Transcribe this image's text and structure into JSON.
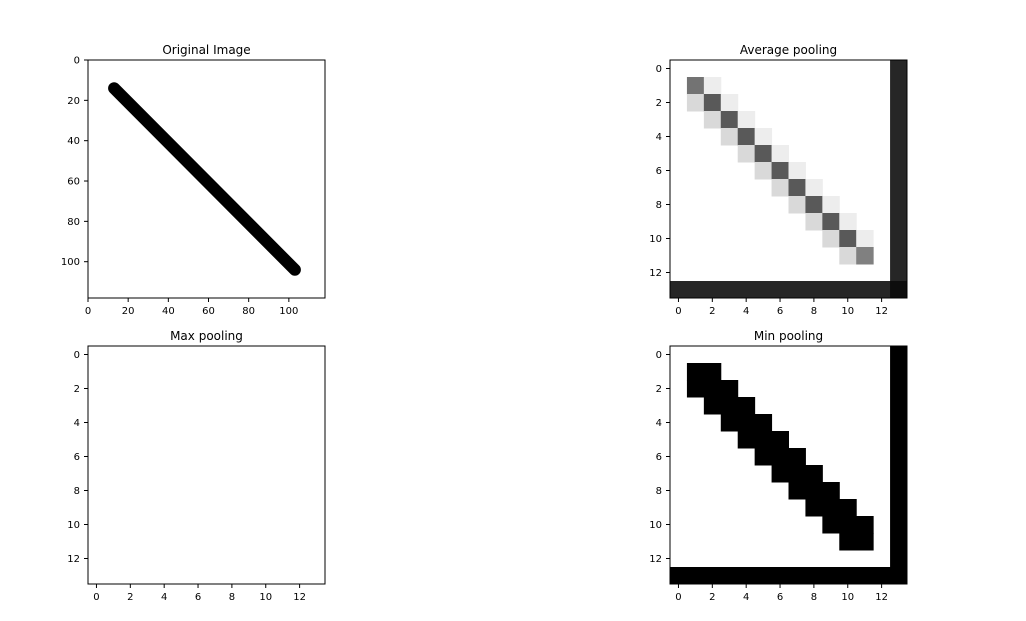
{
  "figure": {
    "background": "#ffffff"
  },
  "chart_data": [
    {
      "type": "heatmap",
      "title": "Original Image",
      "xlabel": "",
      "ylabel": "",
      "xlim": [
        0,
        118
      ],
      "ylim": [
        118,
        0
      ],
      "xticks": [
        0,
        20,
        40,
        60,
        80,
        100
      ],
      "yticks": [
        0,
        20,
        40,
        60,
        80,
        100
      ],
      "colormap": "gray",
      "content": {
        "kind": "line-stroke",
        "from": [
          13,
          14
        ],
        "to": [
          103,
          104
        ],
        "color": "#000000",
        "thickness_data_units": 6
      }
    },
    {
      "type": "heatmap",
      "title": "Average pooling",
      "xlabel": "",
      "ylabel": "",
      "xlim": [
        -0.5,
        13.5
      ],
      "ylim": [
        13.5,
        -0.5
      ],
      "xticks": [
        0,
        2,
        4,
        6,
        8,
        10,
        12
      ],
      "yticks": [
        0,
        2,
        4,
        6,
        8,
        10,
        12
      ],
      "colormap": "gray",
      "cells": [
        [
          1,
          1,
          0.45
        ],
        [
          1,
          2,
          0.93
        ],
        [
          2,
          1,
          0.85
        ],
        [
          2,
          2,
          0.35
        ],
        [
          2,
          3,
          0.93
        ],
        [
          3,
          2,
          0.85
        ],
        [
          3,
          3,
          0.35
        ],
        [
          3,
          4,
          0.93
        ],
        [
          4,
          3,
          0.85
        ],
        [
          4,
          4,
          0.35
        ],
        [
          4,
          5,
          0.93
        ],
        [
          5,
          4,
          0.85
        ],
        [
          5,
          5,
          0.35
        ],
        [
          5,
          6,
          0.93
        ],
        [
          6,
          5,
          0.85
        ],
        [
          6,
          6,
          0.35
        ],
        [
          6,
          7,
          0.93
        ],
        [
          7,
          6,
          0.85
        ],
        [
          7,
          7,
          0.35
        ],
        [
          7,
          8,
          0.93
        ],
        [
          8,
          7,
          0.85
        ],
        [
          8,
          8,
          0.35
        ],
        [
          8,
          9,
          0.93
        ],
        [
          9,
          8,
          0.85
        ],
        [
          9,
          9,
          0.35
        ],
        [
          9,
          10,
          0.93
        ],
        [
          10,
          9,
          0.85
        ],
        [
          10,
          10,
          0.35
        ],
        [
          10,
          11,
          0.93
        ],
        [
          11,
          10,
          0.85
        ],
        [
          11,
          11,
          0.5
        ]
      ],
      "last_row_value": 0.15,
      "last_col_value": 0.15,
      "corner_value": 0.05
    },
    {
      "type": "heatmap",
      "title": "Max pooling",
      "xlabel": "",
      "ylabel": "",
      "xlim": [
        -0.5,
        13.5
      ],
      "ylim": [
        13.5,
        -0.5
      ],
      "xticks": [
        0,
        2,
        4,
        6,
        8,
        10,
        12
      ],
      "yticks": [
        0,
        2,
        4,
        6,
        8,
        10,
        12
      ],
      "colormap": "gray",
      "cells": []
    },
    {
      "type": "heatmap",
      "title": "Min pooling",
      "xlabel": "",
      "ylabel": "",
      "xlim": [
        -0.5,
        13.5
      ],
      "ylim": [
        13.5,
        -0.5
      ],
      "xticks": [
        0,
        2,
        4,
        6,
        8,
        10,
        12
      ],
      "yticks": [
        0,
        2,
        4,
        6,
        8,
        10,
        12
      ],
      "colormap": "gray",
      "cells": [
        [
          1,
          1,
          0
        ],
        [
          1,
          2,
          0
        ],
        [
          2,
          1,
          0
        ],
        [
          2,
          2,
          0
        ],
        [
          2,
          3,
          0
        ],
        [
          3,
          2,
          0
        ],
        [
          3,
          3,
          0
        ],
        [
          3,
          4,
          0
        ],
        [
          4,
          3,
          0
        ],
        [
          4,
          4,
          0
        ],
        [
          4,
          5,
          0
        ],
        [
          5,
          4,
          0
        ],
        [
          5,
          5,
          0
        ],
        [
          5,
          6,
          0
        ],
        [
          6,
          5,
          0
        ],
        [
          6,
          6,
          0
        ],
        [
          6,
          7,
          0
        ],
        [
          7,
          6,
          0
        ],
        [
          7,
          7,
          0
        ],
        [
          7,
          8,
          0
        ],
        [
          8,
          7,
          0
        ],
        [
          8,
          8,
          0
        ],
        [
          8,
          9,
          0
        ],
        [
          9,
          8,
          0
        ],
        [
          9,
          9,
          0
        ],
        [
          9,
          10,
          0
        ],
        [
          10,
          9,
          0
        ],
        [
          10,
          10,
          0
        ],
        [
          10,
          11,
          0
        ],
        [
          11,
          10,
          0
        ],
        [
          11,
          11,
          0
        ]
      ],
      "last_row_value": 0,
      "last_col_value": 0,
      "corner_value": 0
    }
  ]
}
